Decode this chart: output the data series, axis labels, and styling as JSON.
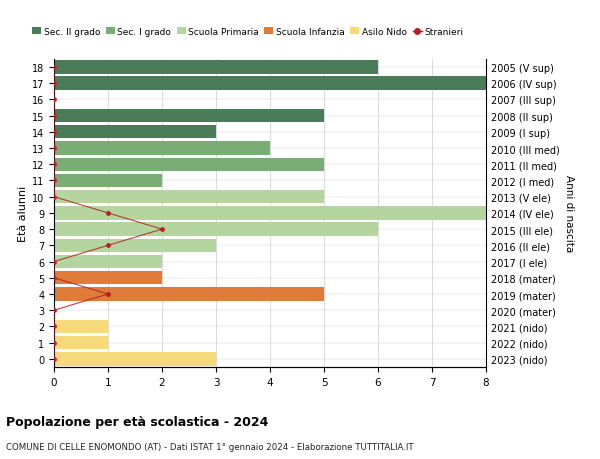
{
  "ages": [
    18,
    17,
    16,
    15,
    14,
    13,
    12,
    11,
    10,
    9,
    8,
    7,
    6,
    5,
    4,
    3,
    2,
    1,
    0
  ],
  "right_labels": [
    "2005 (V sup)",
    "2006 (IV sup)",
    "2007 (III sup)",
    "2008 (II sup)",
    "2009 (I sup)",
    "2010 (III med)",
    "2011 (II med)",
    "2012 (I med)",
    "2013 (V ele)",
    "2014 (IV ele)",
    "2015 (III ele)",
    "2016 (II ele)",
    "2017 (I ele)",
    "2018 (mater)",
    "2019 (mater)",
    "2020 (mater)",
    "2021 (nido)",
    "2022 (nido)",
    "2023 (nido)"
  ],
  "bar_values": [
    6,
    8,
    0,
    5,
    3,
    4,
    5,
    2,
    5,
    8,
    6,
    3,
    2,
    2,
    5,
    0,
    1,
    1,
    3
  ],
  "bar_colors": [
    "#4a7c59",
    "#4a7c59",
    "#4a7c59",
    "#4a7c59",
    "#4a7c59",
    "#7aad75",
    "#7aad75",
    "#7aad75",
    "#b5d5a0",
    "#b5d5a0",
    "#b5d5a0",
    "#b5d5a0",
    "#b5d5a0",
    "#e07b39",
    "#e07b39",
    "#e07b39",
    "#f5d97a",
    "#f5d97a",
    "#f5d97a"
  ],
  "stranieri_values": [
    0,
    0,
    0,
    0,
    0,
    0,
    0,
    0,
    0,
    1,
    2,
    1,
    0,
    0,
    1,
    0,
    0,
    0,
    0
  ],
  "stranieri_color": "#b22222",
  "legend_labels": [
    "Sec. II grado",
    "Sec. I grado",
    "Scuola Primaria",
    "Scuola Infanzia",
    "Asilo Nido",
    "Stranieri"
  ],
  "legend_colors": [
    "#4a7c59",
    "#7aad75",
    "#b5d5a0",
    "#e07b39",
    "#f5d97a",
    "#b22222"
  ],
  "ylabel": "Età alunni",
  "right_ylabel": "Anni di nascita",
  "title": "Popolazione per età scolastica - 2024",
  "subtitle": "COMUNE DI CELLE ENOMONDO (AT) - Dati ISTAT 1° gennaio 2024 - Elaborazione TUTTITALIA.IT",
  "xlim": [
    0,
    8
  ],
  "background_color": "#ffffff",
  "grid_color": "#cccccc"
}
